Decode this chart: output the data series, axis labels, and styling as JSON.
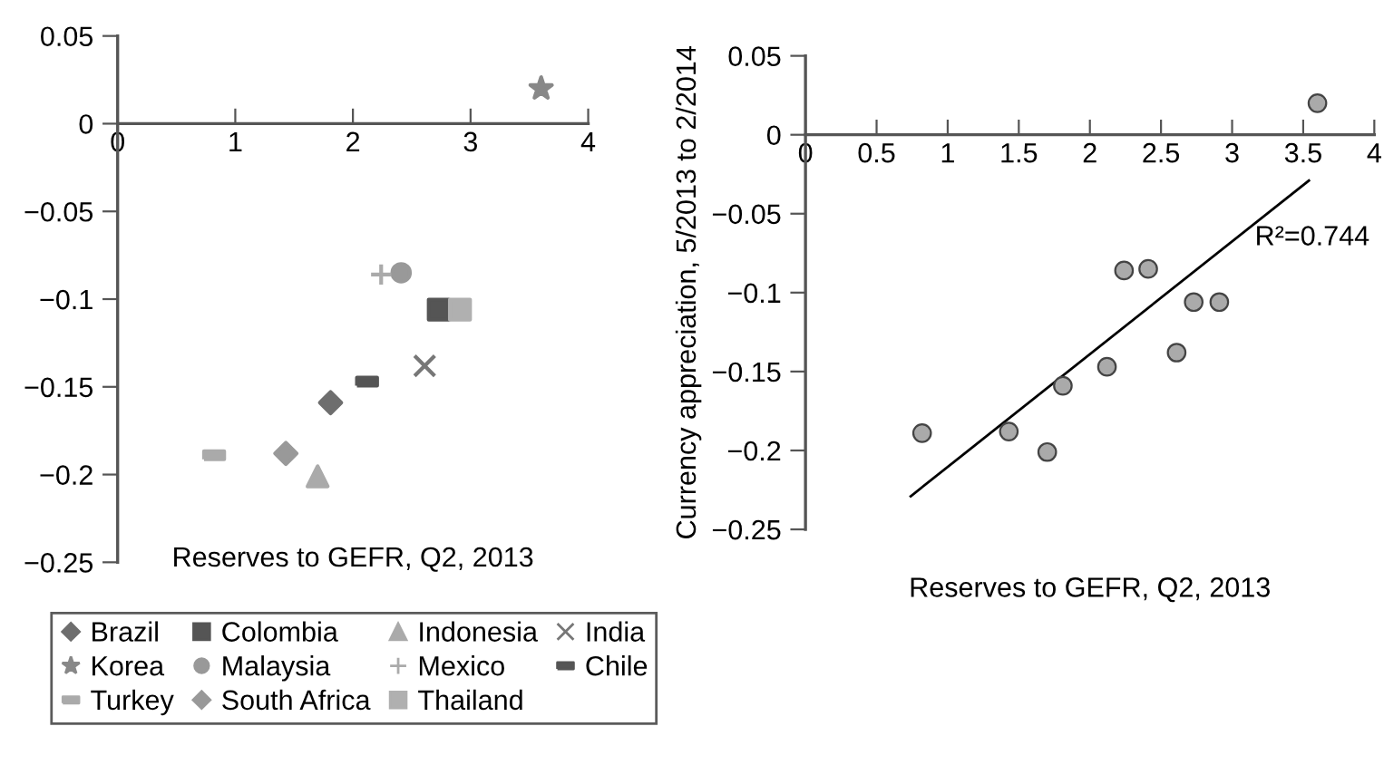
{
  "chart_data": [
    {
      "type": "scatter",
      "xlabel": "Reserves to GEFR, Q2, 2013",
      "xlim": [
        0,
        4
      ],
      "ylim": [
        -0.25,
        0.05
      ],
      "xticks": [
        0,
        1,
        2,
        3,
        4
      ],
      "yticks": [
        {
          "value": 0.05,
          "label": "0.05"
        },
        0,
        {
          "value": -0.05,
          "label": "−0.05"
        },
        {
          "value": -0.1,
          "label": "−0.1"
        },
        {
          "value": -0.15,
          "label": "−0.15"
        },
        {
          "value": -0.2,
          "label": "−0.2"
        },
        {
          "value": -0.25,
          "label": "−0.25"
        }
      ],
      "grid": false,
      "legend": "bottom",
      "series": [
        {
          "name": "Brazil",
          "color": "#6e6e6e",
          "marker": "diamond",
          "x": [
            1.81
          ],
          "values": [
            -0.159
          ]
        },
        {
          "name": "Colombia",
          "color": "#555555",
          "marker": "square",
          "x": [
            2.73
          ],
          "values": [
            -0.106
          ]
        },
        {
          "name": "Indonesia",
          "color": "#aaaaaa",
          "marker": "triangle",
          "x": [
            1.7
          ],
          "values": [
            -0.201
          ]
        },
        {
          "name": "India",
          "color": "#777777",
          "marker": "cross",
          "x": [
            2.61
          ],
          "values": [
            -0.138
          ]
        },
        {
          "name": "Korea",
          "color": "#888888",
          "marker": "star",
          "x": [
            3.6
          ],
          "values": [
            0.02
          ]
        },
        {
          "name": "Malaysia",
          "color": "#999999",
          "marker": "circle",
          "x": [
            2.41
          ],
          "values": [
            -0.085
          ]
        },
        {
          "name": "Mexico",
          "color": "#aaaaaa",
          "marker": "cross",
          "x": [
            2.24
          ],
          "values": [
            -0.086
          ]
        },
        {
          "name": "Chile",
          "color": "#555555",
          "marker": "square",
          "x": [
            2.12
          ],
          "values": [
            -0.147
          ]
        },
        {
          "name": "Turkey",
          "color": "#aaaaaa",
          "marker": "square",
          "x": [
            0.82
          ],
          "values": [
            -0.189
          ]
        },
        {
          "name": "South Africa",
          "color": "#999999",
          "marker": "diamond",
          "x": [
            1.43
          ],
          "values": [
            -0.188
          ]
        },
        {
          "name": "Thailand",
          "color": "#b0b0b0",
          "marker": "square",
          "x": [
            2.91
          ],
          "values": [
            -0.106
          ]
        }
      ]
    },
    {
      "type": "scatter",
      "xlabel": "Reserves to GEFR, Q2, 2013",
      "ylabel": "Currency appreciation, 5/2013 to 2/2014",
      "xlim": [
        0,
        4
      ],
      "ylim": [
        -0.25,
        0.05
      ],
      "xticks": [
        0,
        0.5,
        1,
        1.5,
        2,
        2.5,
        3,
        3.5,
        4
      ],
      "yticks": [
        {
          "value": 0.05,
          "label": "0.05"
        },
        0,
        {
          "value": -0.05,
          "label": "−0.05"
        },
        {
          "value": -0.1,
          "label": "−0.1"
        },
        {
          "value": -0.15,
          "label": "−0.15"
        },
        {
          "value": -0.2,
          "label": "−0.2"
        },
        {
          "value": -0.25,
          "label": "−0.25"
        }
      ],
      "grid": false,
      "annotations": [
        "R²=0.744"
      ],
      "series": [
        {
          "color": "#aaaaaa",
          "marker": "circle",
          "x": [
            1.81,
            2.73,
            1.7,
            2.61,
            3.6,
            2.41,
            2.24,
            2.12,
            0.82,
            1.43,
            2.91
          ],
          "values": [
            -0.159,
            -0.106,
            -0.201,
            -0.138,
            0.02,
            -0.085,
            -0.086,
            -0.147,
            -0.189,
            -0.188,
            -0.106
          ]
        },
        {
          "type": "line",
          "color": "#000000",
          "marker": "none",
          "x": [
            0.74,
            3.54
          ],
          "values": [
            -0.229,
            -0.029
          ]
        }
      ]
    }
  ]
}
